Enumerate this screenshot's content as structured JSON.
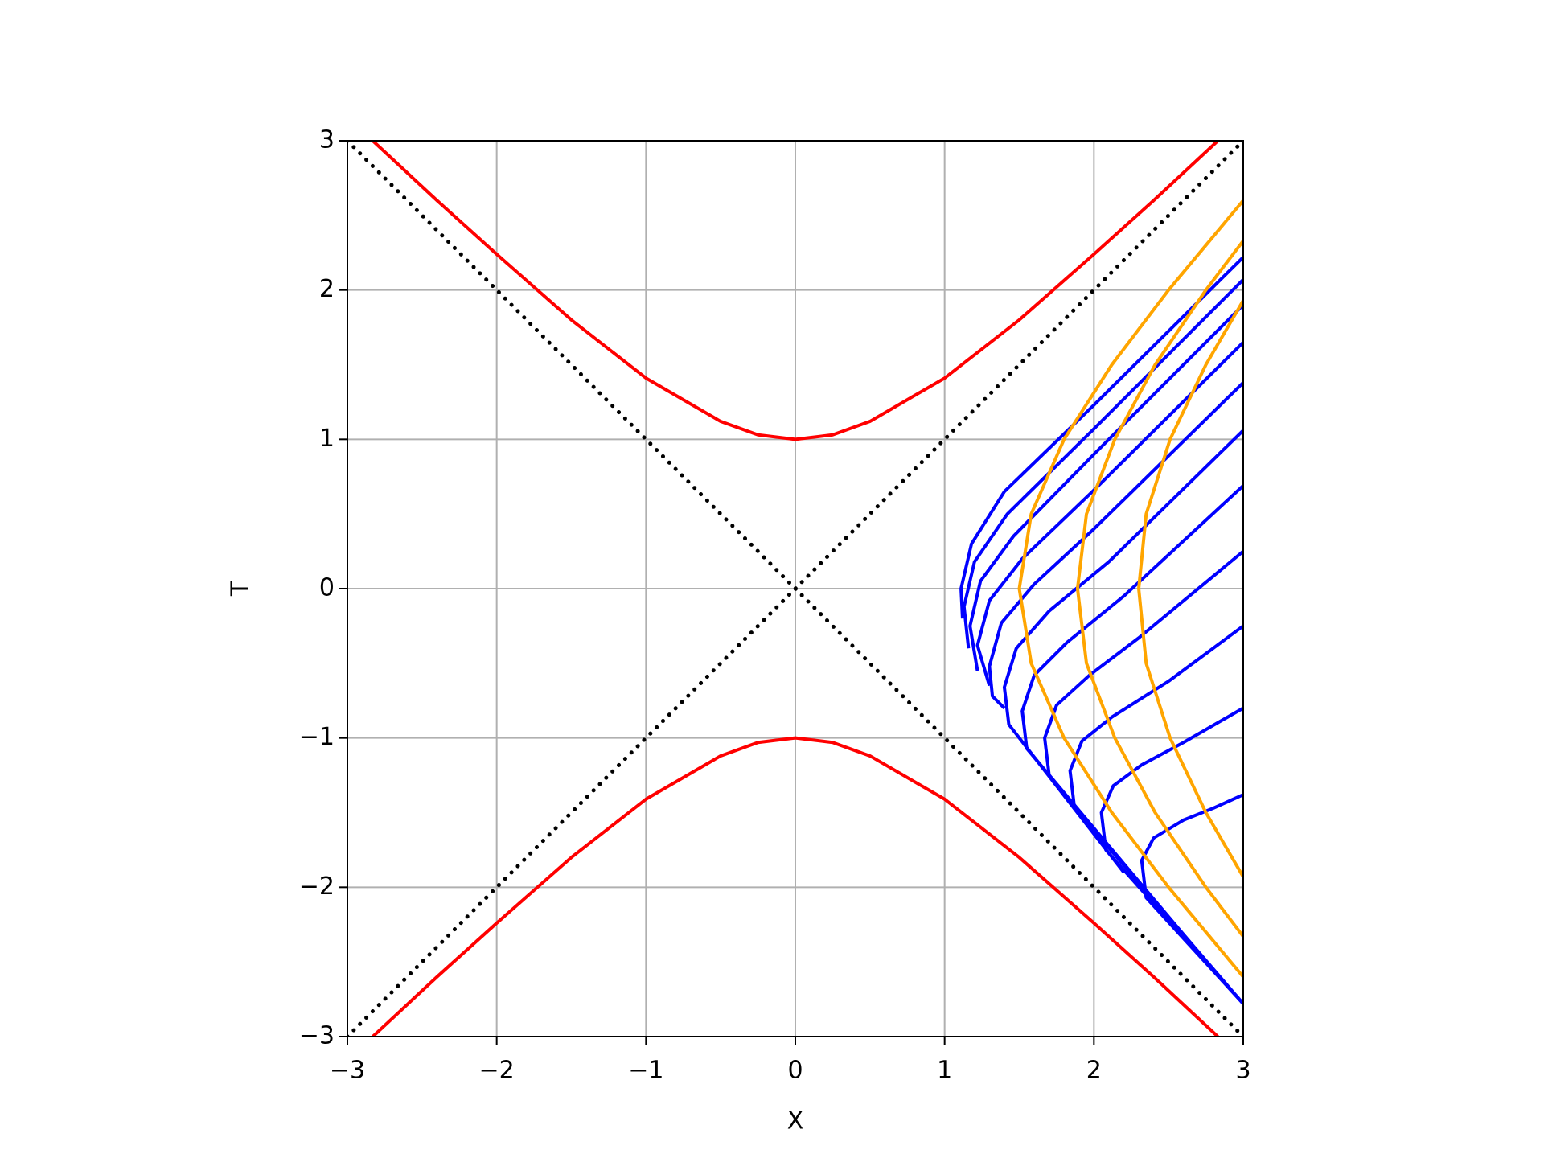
{
  "chart_data": {
    "type": "line",
    "xlabel": "X",
    "ylabel": "T",
    "xlim": [
      -3,
      3
    ],
    "ylim": [
      -3,
      3
    ],
    "xticks": [
      {
        "value": -3,
        "label": "−3"
      },
      {
        "value": -2,
        "label": "−2"
      },
      {
        "value": -1,
        "label": "−1"
      },
      0,
      1,
      2,
      3
    ],
    "yticks": [
      {
        "value": -3,
        "label": "−3"
      },
      {
        "value": -2,
        "label": "−2"
      },
      {
        "value": -1,
        "label": "−1"
      },
      0,
      1,
      2,
      3
    ],
    "grid": true,
    "series": [
      {
        "color": "#ff0000",
        "style": "solid",
        "x": [
          -2.83,
          -2.4,
          -2,
          -1.5,
          -1,
          -0.5,
          -0.25,
          0,
          0.25,
          0.5,
          1,
          1.5,
          2,
          2.4,
          2.83
        ],
        "values": [
          3,
          2.6,
          2.24,
          1.8,
          1.41,
          1.12,
          1.03,
          1,
          1.03,
          1.12,
          1.41,
          1.8,
          2.24,
          2.6,
          3
        ]
      },
      {
        "color": "#ff0000",
        "style": "solid",
        "x": [
          -2.83,
          -2.4,
          -2,
          -1.5,
          -1,
          -0.5,
          -0.25,
          0,
          0.25,
          0.5,
          1,
          1.5,
          2,
          2.4,
          2.83
        ],
        "values": [
          -3,
          -2.6,
          -2.24,
          -1.8,
          -1.41,
          -1.12,
          -1.03,
          -1,
          -1.03,
          -1.12,
          -1.41,
          -1.8,
          -2.24,
          -2.6,
          -3
        ]
      },
      {
        "color": "#000000",
        "style": "dotted",
        "x": [
          -3,
          3
        ],
        "values": [
          -3,
          3
        ]
      },
      {
        "color": "#000000",
        "style": "dotted",
        "x": [
          -3,
          3
        ],
        "values": [
          3,
          -3
        ]
      },
      {
        "color": "#0000ff",
        "style": "solid",
        "x": [
          1.12,
          1.11,
          1.18,
          1.4,
          2,
          3
        ],
        "values": [
          -0.2,
          0,
          0.3,
          0.65,
          1.23,
          2.22
        ]
      },
      {
        "color": "#0000ff",
        "style": "solid",
        "x": [
          1.16,
          1.13,
          1.2,
          1.42,
          2,
          3
        ],
        "values": [
          -0.4,
          -0.12,
          0.18,
          0.5,
          1.07,
          2.07
        ]
      },
      {
        "color": "#0000ff",
        "style": "solid",
        "x": [
          1.22,
          1.17,
          1.24,
          1.46,
          2,
          3
        ],
        "values": [
          -0.55,
          -0.25,
          0.05,
          0.35,
          0.9,
          1.9
        ]
      },
      {
        "color": "#0000ff",
        "style": "solid",
        "x": [
          1.3,
          1.22,
          1.3,
          1.52,
          2,
          3
        ],
        "values": [
          -0.65,
          -0.38,
          -0.08,
          0.2,
          0.66,
          1.65
        ]
      },
      {
        "color": "#0000ff",
        "style": "solid",
        "x": [
          1.4,
          1.32,
          1.3,
          1.38,
          1.6,
          2,
          3
        ],
        "values": [
          -0.8,
          -0.72,
          -0.52,
          -0.23,
          0.03,
          0.4,
          1.38
        ]
      },
      {
        "color": "#0000ff",
        "style": "solid",
        "x": [
          2.2,
          1.43,
          1.4,
          1.48,
          1.7,
          2.1,
          3
        ],
        "values": [
          -1.9,
          -0.91,
          -0.66,
          -0.4,
          -0.15,
          0.18,
          1.06
        ]
      },
      {
        "color": "#0000ff",
        "style": "solid",
        "x": [
          2.67,
          1.55,
          1.52,
          1.6,
          1.82,
          2.2,
          3
        ],
        "values": [
          -2.4,
          -1.07,
          -0.82,
          -0.58,
          -0.36,
          -0.05,
          0.69
        ]
      },
      {
        "color": "#0000ff",
        "style": "solid",
        "x": [
          2.67,
          1.7,
          1.67,
          1.75,
          1.97,
          2.3,
          3
        ],
        "values": [
          -2.4,
          -1.25,
          -1.0,
          -0.78,
          -0.58,
          -0.33,
          0.25
        ]
      },
      {
        "color": "#0000ff",
        "style": "solid",
        "x": [
          3,
          1.87,
          1.84,
          1.92,
          2.12,
          2.5,
          3
        ],
        "values": [
          -2.78,
          -1.47,
          -1.22,
          -1.02,
          -0.86,
          -0.62,
          -0.25
        ]
      },
      {
        "color": "#0000ff",
        "style": "solid",
        "x": [
          3,
          2.08,
          2.05,
          2.13,
          2.32,
          2.6,
          3
        ],
        "values": [
          -2.78,
          -1.75,
          -1.5,
          -1.32,
          -1.18,
          -1.03,
          -0.8
        ]
      },
      {
        "color": "#0000ff",
        "style": "solid",
        "x": [
          3,
          2.35,
          2.32,
          2.4,
          2.6,
          2.8,
          3
        ],
        "values": [
          -2.78,
          -2.07,
          -1.82,
          -1.67,
          -1.55,
          -1.47,
          -1.38
        ]
      },
      {
        "color": "#ffa500",
        "style": "solid",
        "x": [
          3.0,
          2.5,
          2.12,
          1.8,
          1.58,
          1.5,
          1.58,
          1.8,
          2.12,
          2.5,
          3.0
        ],
        "values": [
          -2.6,
          -2,
          -1.5,
          -1,
          -0.5,
          0,
          0.5,
          1,
          1.5,
          2,
          2.6
        ]
      },
      {
        "color": "#ffa500",
        "style": "solid",
        "x": [
          3.0,
          2.75,
          2.41,
          2.14,
          1.95,
          1.89,
          1.95,
          2.14,
          2.41,
          2.75,
          3.0
        ],
        "values": [
          -2.33,
          -2,
          -1.5,
          -1,
          -0.5,
          0,
          0.5,
          1,
          1.5,
          2,
          2.33
        ]
      },
      {
        "color": "#ffa500",
        "style": "solid",
        "x": [
          3.0,
          2.75,
          2.51,
          2.35,
          2.3,
          2.35,
          2.51,
          2.75,
          3.0
        ],
        "values": [
          -1.93,
          -1.5,
          -1,
          -0.5,
          0,
          0.5,
          1,
          1.5,
          1.93
        ]
      }
    ]
  }
}
